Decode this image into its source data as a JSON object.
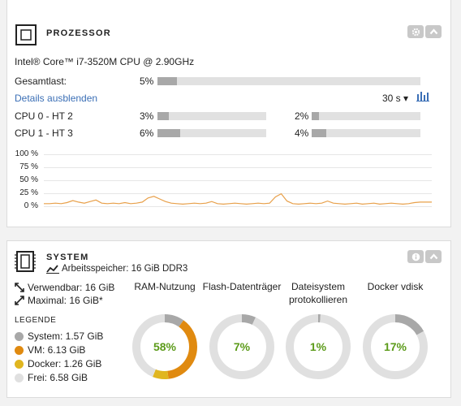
{
  "processor": {
    "title": "PROZESSOR",
    "cpu_model": "Intel® Core™ i7-3520M CPU @ 2.90GHz",
    "total_label": "Gesamtlast:",
    "total_pct_text": "5%",
    "total_pct": 5,
    "details_link": "Details ausblenden",
    "interval": "30 s ▾",
    "cores": [
      {
        "label": "CPU 0 - HT 2",
        "a_text": "3%",
        "a": 3,
        "b_text": "2%",
        "b": 2
      },
      {
        "label": "CPU 1 - HT 3",
        "a_text": "6%",
        "a": 6,
        "b_text": "4%",
        "b": 4
      }
    ],
    "chart_data": {
      "type": "line",
      "title": "",
      "y_ticks": [
        "100 %",
        "75 %",
        "50 %",
        "25 %",
        "0 %"
      ],
      "ylim": [
        0,
        100
      ],
      "color": "#e8a04a",
      "values": [
        5,
        5,
        6,
        5,
        7,
        11,
        8,
        6,
        9,
        12,
        6,
        5,
        6,
        5,
        7,
        5,
        6,
        8,
        16,
        19,
        14,
        9,
        6,
        5,
        4,
        5,
        6,
        5,
        6,
        9,
        5,
        4,
        5,
        6,
        5,
        4,
        5,
        6,
        5,
        6,
        18,
        24,
        10,
        5,
        4,
        5,
        6,
        5,
        6,
        10,
        6,
        5,
        4,
        5,
        6,
        4,
        5,
        6,
        4,
        5,
        6,
        5,
        4,
        5,
        7,
        8,
        8,
        8
      ]
    }
  },
  "system": {
    "title": "SYSTEM",
    "memory_label": "Arbeitsspeicher: 16 GiB DDR3",
    "usable": "Verwendbar: 16 GiB",
    "maximal": "Maximal: 16 GiB*",
    "legend_title": "LEGENDE",
    "legend": [
      {
        "label": "System: 1.57 GiB",
        "color": "#a8a8a8"
      },
      {
        "label": "VM: 6.13 GiB",
        "color": "#e08a10"
      },
      {
        "label": "Docker: 1.26 GiB",
        "color": "#e0b620"
      },
      {
        "label": "Frei: 6.58 GiB",
        "color": "#e0e0e0"
      }
    ],
    "donuts": [
      {
        "title": "RAM-Nutzung",
        "pct": "58%"
      },
      {
        "title": "Flash-Datenträger",
        "pct": "7%"
      },
      {
        "title": "Dateisystem protokollieren",
        "pct": "1%"
      },
      {
        "title": "Docker vdisk",
        "pct": "17%"
      }
    ]
  }
}
